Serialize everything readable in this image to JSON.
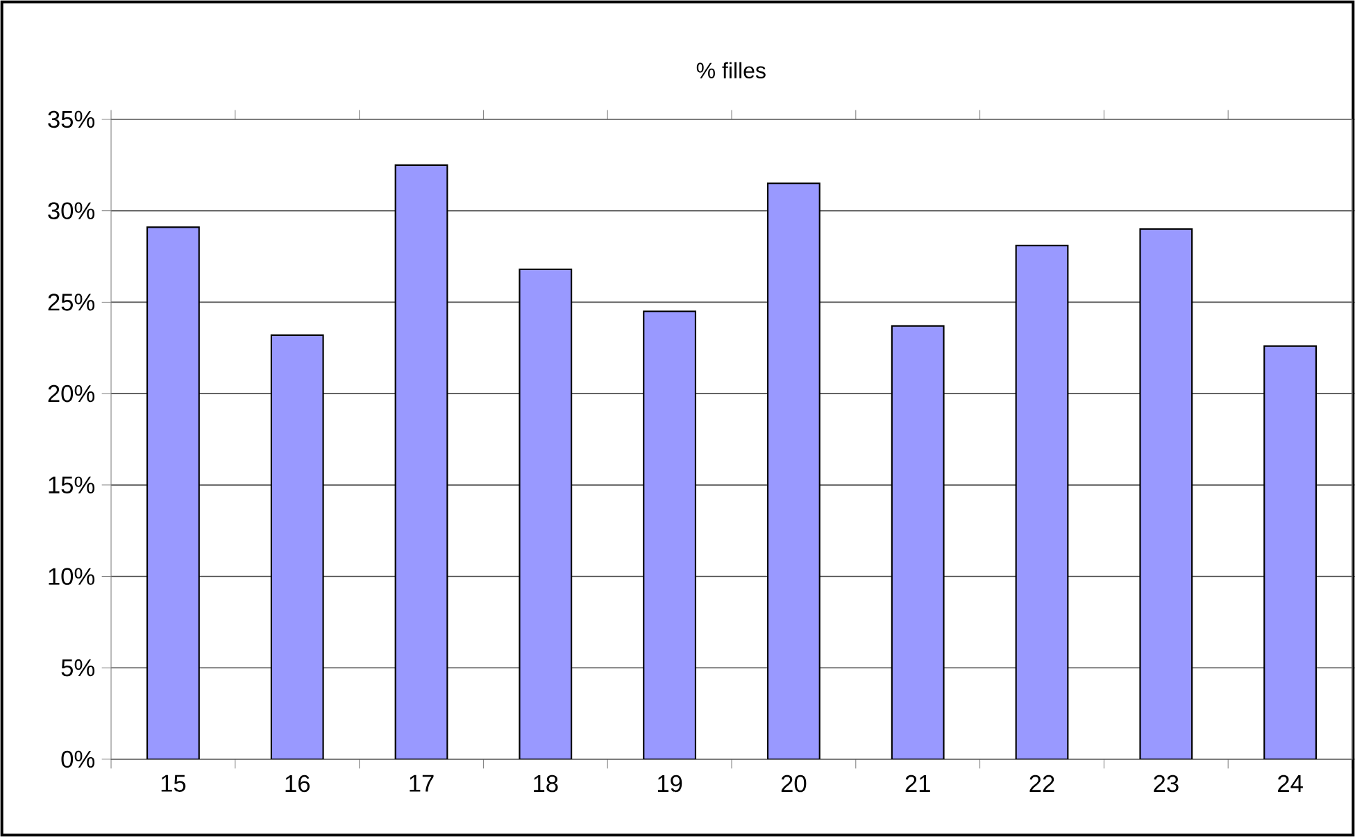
{
  "chart_data": {
    "type": "bar",
    "title": "% filles",
    "categories": [
      "15",
      "16",
      "17",
      "18",
      "19",
      "20",
      "21",
      "22",
      "23",
      "24"
    ],
    "values": [
      29.1,
      23.2,
      32.5,
      26.8,
      24.5,
      31.5,
      23.7,
      28.1,
      29.0,
      22.6
    ],
    "color": "#9999ff",
    "ylim": [
      0,
      35
    ],
    "yticks": [
      {
        "value": 0,
        "label": "0%"
      },
      {
        "value": 5,
        "label": "5%"
      },
      {
        "value": 10,
        "label": "10%"
      },
      {
        "value": 15,
        "label": "15%"
      },
      {
        "value": 20,
        "label": "20%"
      },
      {
        "value": 25,
        "label": "25%"
      },
      {
        "value": 30,
        "label": "30%"
      },
      {
        "value": 35,
        "label": "35%"
      }
    ],
    "grid": "y",
    "legend": false
  }
}
